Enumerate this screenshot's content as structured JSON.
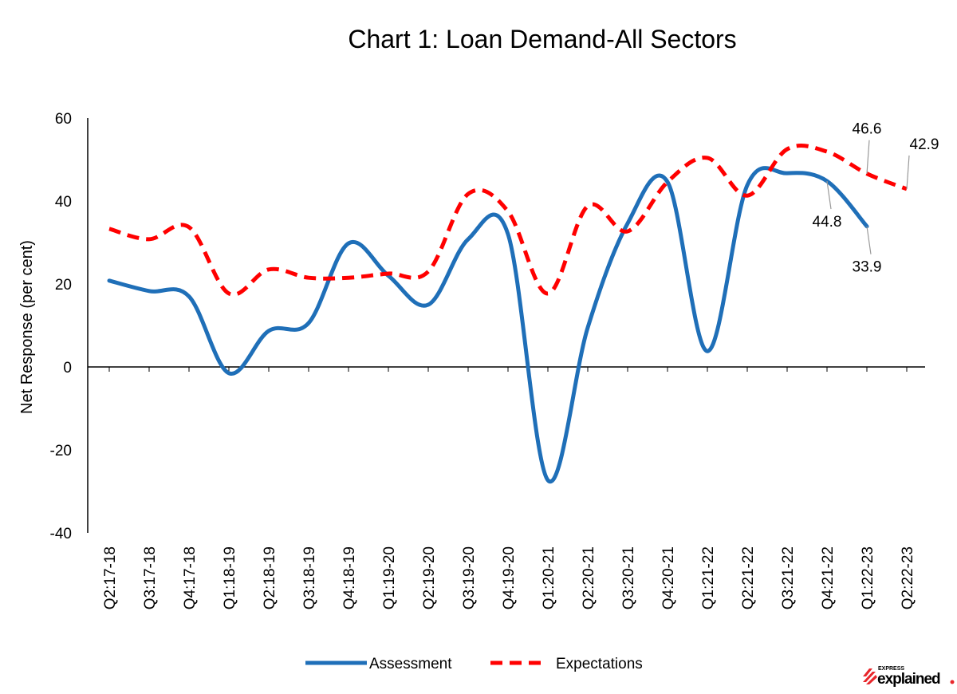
{
  "chart_data": {
    "type": "line",
    "title": "Chart 1: Loan Demand-All Sectors",
    "xlabel": "",
    "ylabel": "Net Response (per cent)",
    "ylim": [
      -40,
      60
    ],
    "yticks": [
      -40,
      -20,
      0,
      20,
      40,
      60
    ],
    "grid": false,
    "legend_position": "bottom",
    "categories": [
      "Q2:17-18",
      "Q3:17-18",
      "Q4:17-18",
      "Q1:18-19",
      "Q2:18-19",
      "Q3:18-19",
      "Q4:18-19",
      "Q1:19-20",
      "Q2:19-20",
      "Q3:19-20",
      "Q4:19-20",
      "Q1:20-21",
      "Q2:20-21",
      "Q3:20-21",
      "Q4:20-21",
      "Q1:21-22",
      "Q2:21-22",
      "Q3:21-22",
      "Q4:21-22",
      "Q1:22-23",
      "Q2:22-23"
    ],
    "series": [
      {
        "name": "Assessment",
        "color": "#1f6fb8",
        "style": "solid",
        "values": [
          20.8,
          18.3,
          17.0,
          -1.5,
          8.7,
          10.6,
          29.8,
          22.0,
          15.0,
          30.8,
          32.0,
          -27.3,
          9.5,
          34.6,
          44.6,
          3.8,
          43.8,
          46.7,
          44.8,
          33.9,
          null
        ],
        "data_labels": [
          {
            "category": "Q4:21-22",
            "label": "44.8"
          },
          {
            "category": "Q1:22-23",
            "label": "33.9"
          }
        ]
      },
      {
        "name": "Expectations",
        "color": "#ff0000",
        "style": "dashed",
        "values": [
          33.3,
          30.8,
          33.7,
          17.7,
          23.5,
          21.5,
          21.5,
          22.5,
          23.0,
          41.7,
          37.5,
          17.7,
          38.8,
          32.7,
          44.6,
          50.4,
          41.3,
          52.5,
          51.9,
          46.6,
          42.9
        ],
        "data_labels": [
          {
            "category": "Q1:22-23",
            "label": "46.6"
          },
          {
            "category": "Q2:22-23",
            "label": "42.9"
          }
        ]
      }
    ]
  },
  "logo": {
    "top": "EXPRESS",
    "main": "explained"
  }
}
